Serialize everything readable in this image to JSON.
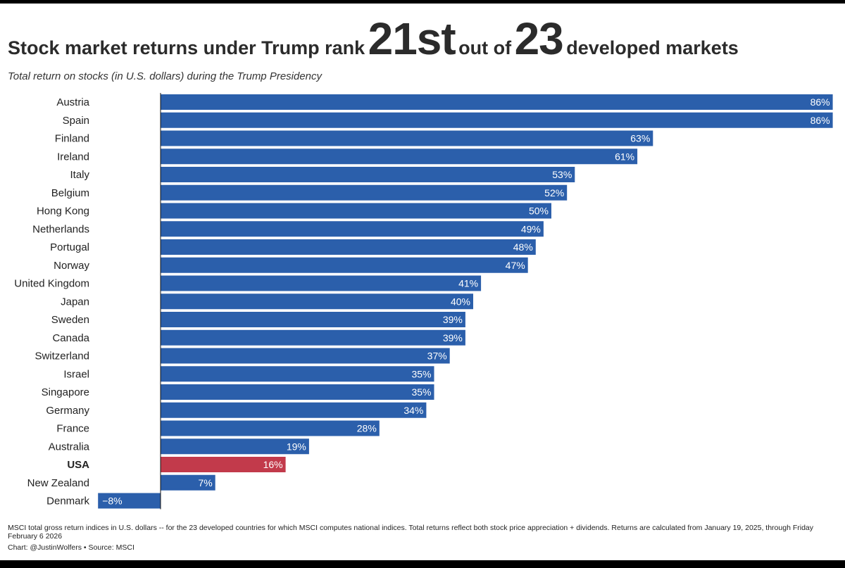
{
  "title": {
    "part1": "Stock market returns under Trump rank",
    "rank": "21st",
    "part2": "out of",
    "total": "23",
    "part3": "developed markets"
  },
  "subtitle": "Total return on stocks (in U.S. dollars) during the Trump Presidency",
  "chart_data": {
    "type": "bar",
    "orientation": "horizontal",
    "title": "Stock market returns under Trump rank 21st out of 23 developed markets",
    "subtitle": "Total return on stocks (in U.S. dollars) during the Trump Presidency",
    "unit": "%",
    "xlim": [
      -8,
      86
    ],
    "grid": false,
    "categories": [
      "Austria",
      "Spain",
      "Finland",
      "Ireland",
      "Italy",
      "Belgium",
      "Hong Kong",
      "Netherlands",
      "Portugal",
      "Norway",
      "United Kingdom",
      "Japan",
      "Sweden",
      "Canada",
      "Switzerland",
      "Israel",
      "Singapore",
      "Germany",
      "France",
      "Australia",
      "USA",
      "New Zealand",
      "Denmark"
    ],
    "values": [
      86,
      86,
      63,
      61,
      53,
      52,
      50,
      49,
      48,
      47,
      41,
      40,
      39,
      39,
      37,
      35,
      35,
      34,
      28,
      19,
      16,
      7,
      -8
    ],
    "labels": [
      "86%",
      "86%",
      "63%",
      "61%",
      "53%",
      "52%",
      "50%",
      "49%",
      "48%",
      "47%",
      "41%",
      "40%",
      "39%",
      "39%",
      "37%",
      "35%",
      "35%",
      "34%",
      "28%",
      "19%",
      "16%",
      "7%",
      "−8%"
    ],
    "highlight": "USA",
    "colors": {
      "default": "#2b5fab",
      "highlight": "#c23a4b"
    }
  },
  "footnote": "MSCI total gross return indices in U.S. dollars -- for the 23 developed countries for which MSCI computes national indices. Total returns reflect both stock price appreciation + dividends. Returns are calculated from January 19, 2025, through Friday February 6 2026",
  "credit": "Chart: @JustinWolfers • Source: MSCI"
}
